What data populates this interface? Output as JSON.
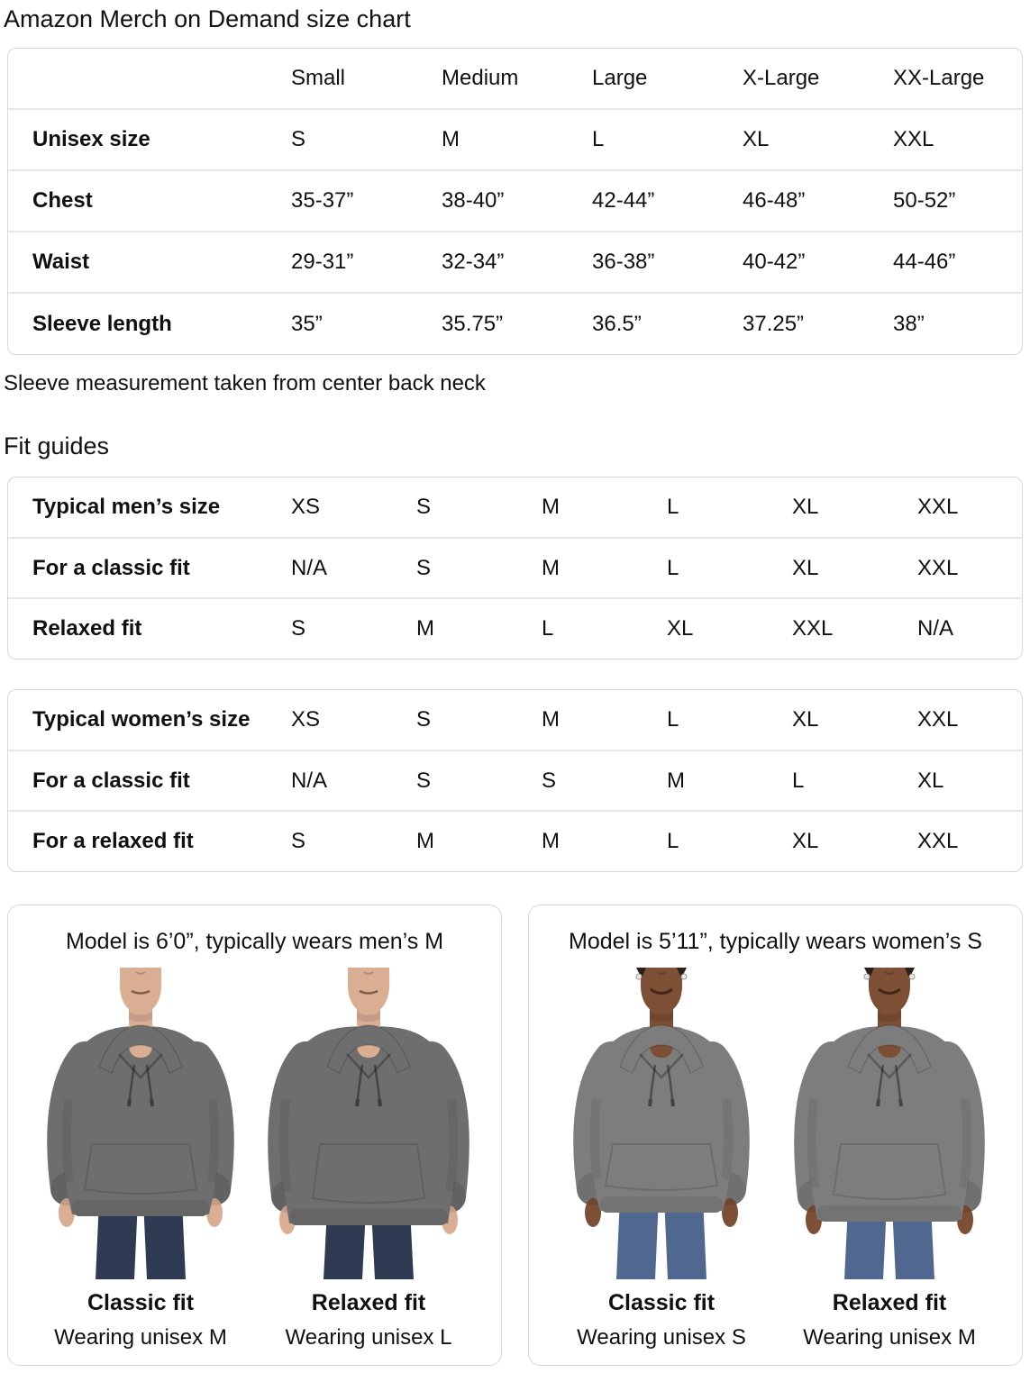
{
  "page": {
    "title": "Amazon Merch on Demand size chart",
    "sleeve_note": "Sleeve measurement taken from center back neck",
    "fit_guides_heading": "Fit guides"
  },
  "size_chart": {
    "columns": [
      "",
      "Small",
      "Medium",
      "Large",
      "X-Large",
      "XX-Large"
    ],
    "rows": [
      {
        "label": "Unisex size",
        "values": [
          "S",
          "M",
          "L",
          "XL",
          "XXL"
        ]
      },
      {
        "label": "Chest",
        "values": [
          "35-37”",
          "38-40”",
          "42-44”",
          "46-48”",
          "50-52”"
        ]
      },
      {
        "label": "Waist",
        "values": [
          "29-31”",
          "32-34”",
          "36-38”",
          "40-42”",
          "44-46”"
        ]
      },
      {
        "label": "Sleeve length",
        "values": [
          "35”",
          "35.75”",
          "36.5”",
          "37.25”",
          "38”"
        ]
      }
    ]
  },
  "fit_guides": {
    "men": {
      "rows": [
        {
          "label": "Typical men’s size",
          "values": [
            "XS",
            "S",
            "M",
            "L",
            "XL",
            "XXL"
          ]
        },
        {
          "label": "For a classic fit",
          "values": [
            "N/A",
            "S",
            "M",
            "L",
            "XL",
            "XXL"
          ]
        },
        {
          "label": "Relaxed fit",
          "values": [
            "S",
            "M",
            "L",
            "XL",
            "XXL",
            "N/A"
          ]
        }
      ]
    },
    "women": {
      "rows": [
        {
          "label": "Typical women’s size",
          "values": [
            "XS",
            "S",
            "M",
            "L",
            "XL",
            "XXL"
          ]
        },
        {
          "label": "For a classic fit",
          "values": [
            "N/A",
            "S",
            "S",
            "M",
            "L",
            "XL"
          ]
        },
        {
          "label": "For a relaxed fit",
          "values": [
            "S",
            "M",
            "M",
            "L",
            "XL",
            "XXL"
          ]
        }
      ]
    }
  },
  "panels": [
    {
      "heading": "Model is 6’0”, typically wears men’s M",
      "figures": [
        {
          "title": "Classic fit",
          "subtitle": "Wearing unisex M",
          "model": "male",
          "fit": "classic"
        },
        {
          "title": "Relaxed fit",
          "subtitle": "Wearing unisex L",
          "model": "male",
          "fit": "relaxed"
        }
      ]
    },
    {
      "heading": "Model is 5’11”, typically wears women’s S",
      "figures": [
        {
          "title": "Classic fit",
          "subtitle": "Wearing unisex S",
          "model": "female",
          "fit": "classic"
        },
        {
          "title": "Relaxed fit",
          "subtitle": "Wearing unisex M",
          "model": "female",
          "fit": "relaxed"
        }
      ]
    }
  ],
  "theme": {
    "text": "#0f1111",
    "border": "#d5d9d9",
    "divider": "#e7e7e7",
    "hoodie_male": "#6e6e6e",
    "hoodie_female": "#7d7d7d",
    "jeans_male": "#2e3b52",
    "jeans_female": "#50678f",
    "skin_male": "#d9ae93",
    "skin_female": "#7d4f35"
  }
}
